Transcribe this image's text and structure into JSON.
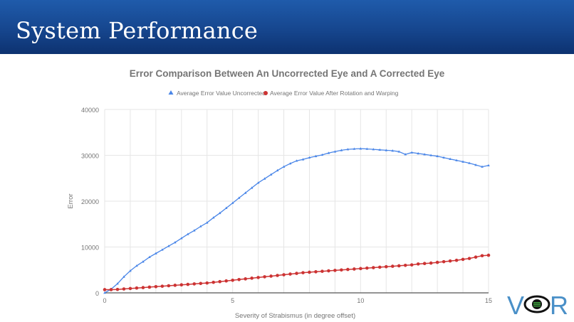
{
  "slide": {
    "title": "System Performance"
  },
  "logo": {
    "left": "V",
    "right": "R",
    "icon": "eye-icon",
    "colors": {
      "letters": "#4a90c8",
      "eye": "#111111",
      "iris": "#3a9a3a"
    }
  },
  "colors": {
    "header": "#16468e",
    "series_uncorrected": "#4a86e8",
    "series_corrected": "#cc3333",
    "grid": "#e6e6e6",
    "text": "#757575"
  },
  "chart_data": {
    "type": "line",
    "title": "Error Comparison Between An Uncorrected Eye and A Corrected Eye",
    "xlabel": "Severity of Strabismus (in degree offset)",
    "ylabel": "Error",
    "xlim": [
      0,
      15
    ],
    "ylim": [
      0,
      40000
    ],
    "xticks": [
      "0",
      "5",
      "10",
      "15"
    ],
    "yticks": [
      "0",
      "10000",
      "20000",
      "30000",
      "40000"
    ],
    "grid": true,
    "legend_position": "top",
    "series": [
      {
        "name": "Average Error Value Uncorrected",
        "marker": "triangle",
        "color": "#4a86e8",
        "x": [
          0,
          0.25,
          0.5,
          0.75,
          1,
          1.25,
          1.5,
          1.75,
          2,
          2.25,
          2.5,
          2.75,
          3,
          3.25,
          3.5,
          3.75,
          4,
          4.25,
          4.5,
          4.75,
          5,
          5.25,
          5.5,
          5.75,
          6,
          6.25,
          6.5,
          6.75,
          7,
          7.25,
          7.5,
          7.75,
          8,
          8.25,
          8.5,
          8.75,
          9,
          9.25,
          9.5,
          9.75,
          10,
          10.25,
          10.5,
          10.75,
          11,
          11.25,
          11.5,
          11.75,
          12,
          12.25,
          12.5,
          12.75,
          13,
          13.25,
          13.5,
          13.75,
          14,
          14.25,
          14.5,
          14.75,
          15
        ],
        "y": [
          0,
          800,
          2000,
          3500,
          4800,
          5900,
          6800,
          7800,
          8600,
          9400,
          10200,
          11000,
          11900,
          12800,
          13600,
          14500,
          15300,
          16400,
          17400,
          18500,
          19600,
          20700,
          21800,
          22900,
          24000,
          24900,
          25800,
          26700,
          27500,
          28200,
          28800,
          29100,
          29500,
          29800,
          30100,
          30500,
          30800,
          31100,
          31300,
          31400,
          31450,
          31400,
          31300,
          31200,
          31100,
          31000,
          30800,
          30200,
          30600,
          30400,
          30200,
          30000,
          29800,
          29500,
          29200,
          28900,
          28600,
          28300,
          27900,
          27500,
          27800
        ]
      },
      {
        "name": "Average Error Value After Rotation and Warping",
        "marker": "circle",
        "color": "#cc3333",
        "x": [
          0,
          0.25,
          0.5,
          0.75,
          1,
          1.25,
          1.5,
          1.75,
          2,
          2.25,
          2.5,
          2.75,
          3,
          3.25,
          3.5,
          3.75,
          4,
          4.25,
          4.5,
          4.75,
          5,
          5.25,
          5.5,
          5.75,
          6,
          6.25,
          6.5,
          6.75,
          7,
          7.25,
          7.5,
          7.75,
          8,
          8.25,
          8.5,
          8.75,
          9,
          9.25,
          9.5,
          9.75,
          10,
          10.25,
          10.5,
          10.75,
          11,
          11.25,
          11.5,
          11.75,
          12,
          12.25,
          12.5,
          12.75,
          13,
          13.25,
          13.5,
          13.75,
          14,
          14.25,
          14.5,
          14.75,
          15
        ],
        "y": [
          700,
          700,
          750,
          850,
          950,
          1050,
          1150,
          1250,
          1350,
          1450,
          1550,
          1650,
          1750,
          1850,
          1950,
          2050,
          2150,
          2300,
          2450,
          2600,
          2750,
          2900,
          3050,
          3200,
          3350,
          3500,
          3650,
          3800,
          3950,
          4100,
          4250,
          4400,
          4500,
          4600,
          4700,
          4800,
          4900,
          5000,
          5100,
          5200,
          5300,
          5400,
          5500,
          5600,
          5700,
          5800,
          5900,
          6000,
          6100,
          6300,
          6400,
          6500,
          6650,
          6800,
          6950,
          7100,
          7300,
          7500,
          7800,
          8100,
          8200
        ]
      }
    ]
  }
}
